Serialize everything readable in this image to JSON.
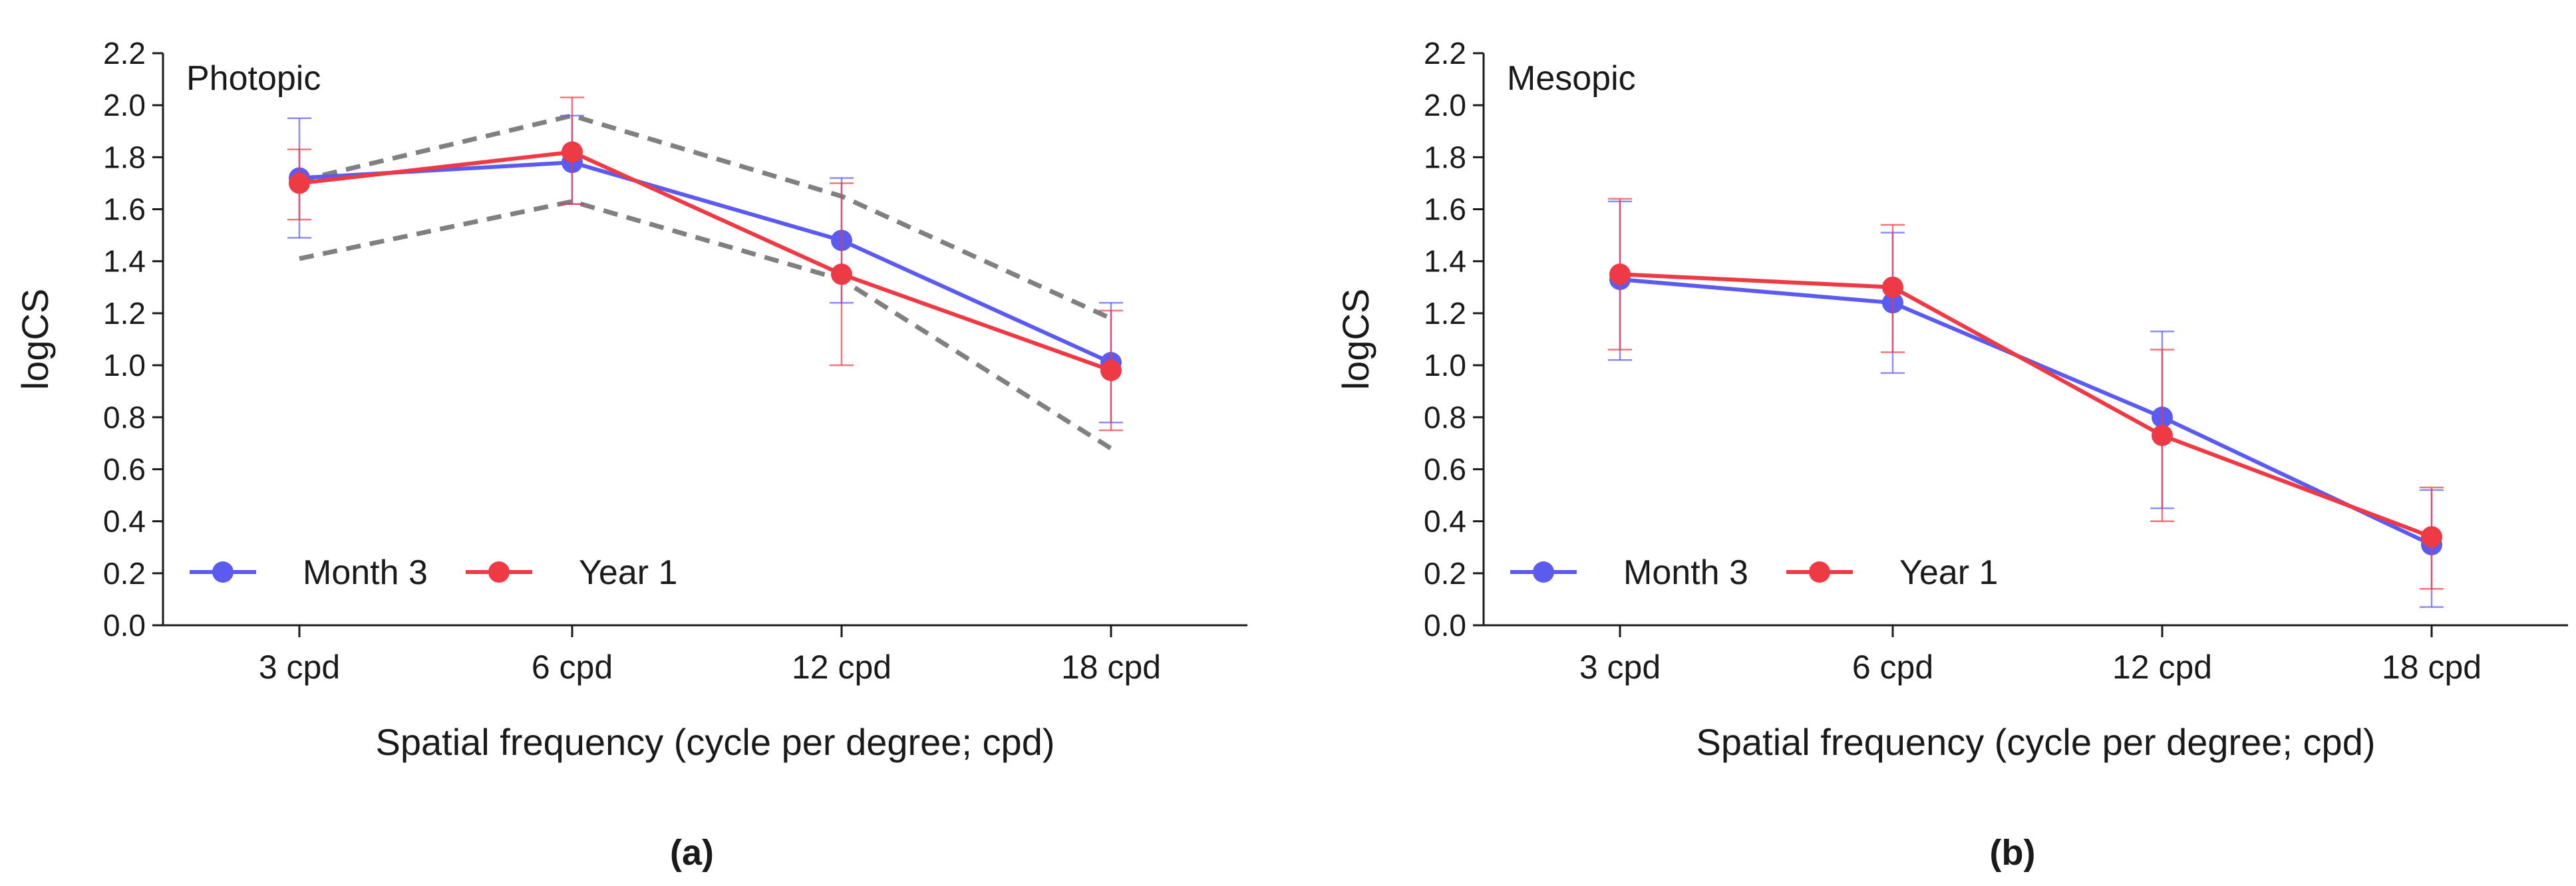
{
  "chart_data": [
    {
      "id": "a",
      "type": "line",
      "caption": "(a)",
      "panel_label": "Photopic",
      "xlabel": "Spatial frequency (cycle per degree; cpd)",
      "ylabel": "logCS",
      "categories": [
        "3 cpd",
        "6 cpd",
        "12 cpd",
        "18 cpd"
      ],
      "ylim": [
        0,
        2.2
      ],
      "yticks": [
        "0.0",
        "0.2",
        "0.4",
        "0.6",
        "0.8",
        "1.0",
        "1.2",
        "1.4",
        "1.6",
        "1.8",
        "2.0",
        "2.2"
      ],
      "legend": {
        "position": "bottom-left",
        "entries": [
          "Month 3",
          "Year 1"
        ]
      },
      "series": [
        {
          "name": "Month 3",
          "color": "#5b5bf0",
          "values": [
            1.72,
            1.78,
            1.48,
            1.01
          ],
          "err_low": [
            1.49,
            1.62,
            1.24,
            0.78
          ],
          "err_high": [
            1.95,
            1.96,
            1.72,
            1.24
          ]
        },
        {
          "name": "Year 1",
          "color": "#ee3a45",
          "values": [
            1.7,
            1.82,
            1.35,
            0.98
          ],
          "err_low": [
            1.56,
            1.62,
            1.0,
            0.75
          ],
          "err_high": [
            1.83,
            2.03,
            1.7,
            1.21
          ]
        }
      ],
      "reference_lines": [
        {
          "name": "upper-bound",
          "color": "#808080",
          "values": [
            1.71,
            1.96,
            1.65,
            1.18
          ]
        },
        {
          "name": "lower-bound",
          "color": "#808080",
          "values": [
            1.41,
            1.63,
            1.33,
            0.68
          ]
        }
      ]
    },
    {
      "id": "b",
      "type": "line",
      "caption": "(b)",
      "panel_label": "Mesopic",
      "xlabel": "Spatial frequency (cycle per degree; cpd)",
      "ylabel": "logCS",
      "categories": [
        "3 cpd",
        "6 cpd",
        "12 cpd",
        "18 cpd"
      ],
      "ylim": [
        0,
        2.2
      ],
      "yticks": [
        "0.0",
        "0.2",
        "0.4",
        "0.6",
        "0.8",
        "1.0",
        "1.2",
        "1.4",
        "1.6",
        "1.8",
        "2.0",
        "2.2"
      ],
      "legend": {
        "position": "bottom-left",
        "entries": [
          "Month 3",
          "Year 1"
        ]
      },
      "series": [
        {
          "name": "Month 3",
          "color": "#5b5bf0",
          "values": [
            1.33,
            1.24,
            0.8,
            0.31
          ],
          "err_low": [
            1.02,
            0.97,
            0.45,
            0.07
          ],
          "err_high": [
            1.63,
            1.51,
            1.13,
            0.52
          ]
        },
        {
          "name": "Year 1",
          "color": "#ee3a45",
          "values": [
            1.35,
            1.3,
            0.73,
            0.34
          ],
          "err_low": [
            1.06,
            1.05,
            0.4,
            0.14
          ],
          "err_high": [
            1.64,
            1.54,
            1.06,
            0.53
          ]
        }
      ],
      "reference_lines": []
    }
  ]
}
